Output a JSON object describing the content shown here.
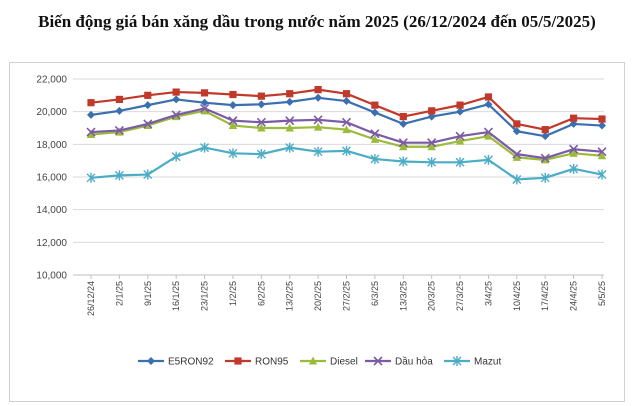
{
  "title": "Biến động giá bán xăng dầu trong nước năm 2025 (26/12/2024 đến 05/5/2025)",
  "chart_data": {
    "type": "line",
    "title": "Biến động giá bán xăng dầu trong nước năm 2025 (26/12/2024 đến 05/5/2025)",
    "xlabel": "",
    "ylabel": "",
    "ylim": [
      10000,
      22000
    ],
    "yticks": [
      "10,000",
      "12,000",
      "14,000",
      "16,000",
      "18,000",
      "20,000",
      "22,000"
    ],
    "grid": true,
    "legend_position": "bottom",
    "categories": [
      "26/12/24",
      "2/1/25",
      "9/1/25",
      "16/1/25",
      "23/1/25",
      "1/2/25",
      "6/2/25",
      "13/2/25",
      "20/2/25",
      "27/2/25",
      "6/3/25",
      "13/3/25",
      "20/3/25",
      "27/3/25",
      "3/4/25",
      "10/4/25",
      "17/4/25",
      "24/4/25",
      "5/5/25"
    ],
    "x": [
      "26/12/24",
      "",
      "2/1/25",
      "",
      "9/1/25",
      "",
      "16/1/25",
      "",
      "23/1/25",
      "",
      "1/2/25",
      "",
      "6/2/25",
      "",
      "13/2/25",
      "",
      "20/2/25",
      "",
      "27/2/25",
      "",
      "6/3/25",
      "",
      "13/3/25",
      "",
      "20/3/25",
      "",
      "27/3/25",
      "",
      "3/4/25",
      "",
      "10/4/25",
      "",
      "17/4/25",
      "",
      "24/4/25",
      "",
      "5/5/25"
    ],
    "series": [
      {
        "name": "E5RON92",
        "color": "#3a6fb0",
        "marker": "diamond",
        "values": [
          19800,
          20050,
          20400,
          20750,
          20550,
          20400,
          20450,
          20600,
          20850,
          20650,
          19950,
          19250,
          19700,
          20000,
          20450,
          18800,
          18500,
          19250,
          19150
        ]
      },
      {
        "name": "RON95",
        "color": "#c0392b",
        "marker": "square",
        "values": [
          20550,
          20750,
          21000,
          21200,
          21150,
          21050,
          20950,
          21100,
          21350,
          21100,
          20400,
          19700,
          20050,
          20400,
          20900,
          19250,
          18900,
          19600,
          19550
        ]
      },
      {
        "name": "Diesel",
        "color": "#9bbb3a",
        "marker": "triangle",
        "values": [
          18600,
          18750,
          19150,
          19700,
          20050,
          19150,
          19000,
          19000,
          19050,
          18900,
          18300,
          17850,
          17850,
          18200,
          18500,
          17200,
          17050,
          17450,
          17300
        ]
      },
      {
        "name": "Dầu hỏa",
        "color": "#7b5aa6",
        "marker": "x",
        "values": [
          18750,
          18850,
          19250,
          19800,
          20200,
          19450,
          19350,
          19450,
          19500,
          19350,
          18650,
          18100,
          18100,
          18500,
          18750,
          17400,
          17150,
          17700,
          17550
        ]
      },
      {
        "name": "Mazut",
        "color": "#4bacc6",
        "marker": "star",
        "values": [
          15950,
          16100,
          16150,
          17250,
          17800,
          17450,
          17400,
          17800,
          17550,
          17600,
          17100,
          16950,
          16900,
          16900,
          17050,
          15850,
          15950,
          16500,
          16150
        ]
      }
    ]
  }
}
